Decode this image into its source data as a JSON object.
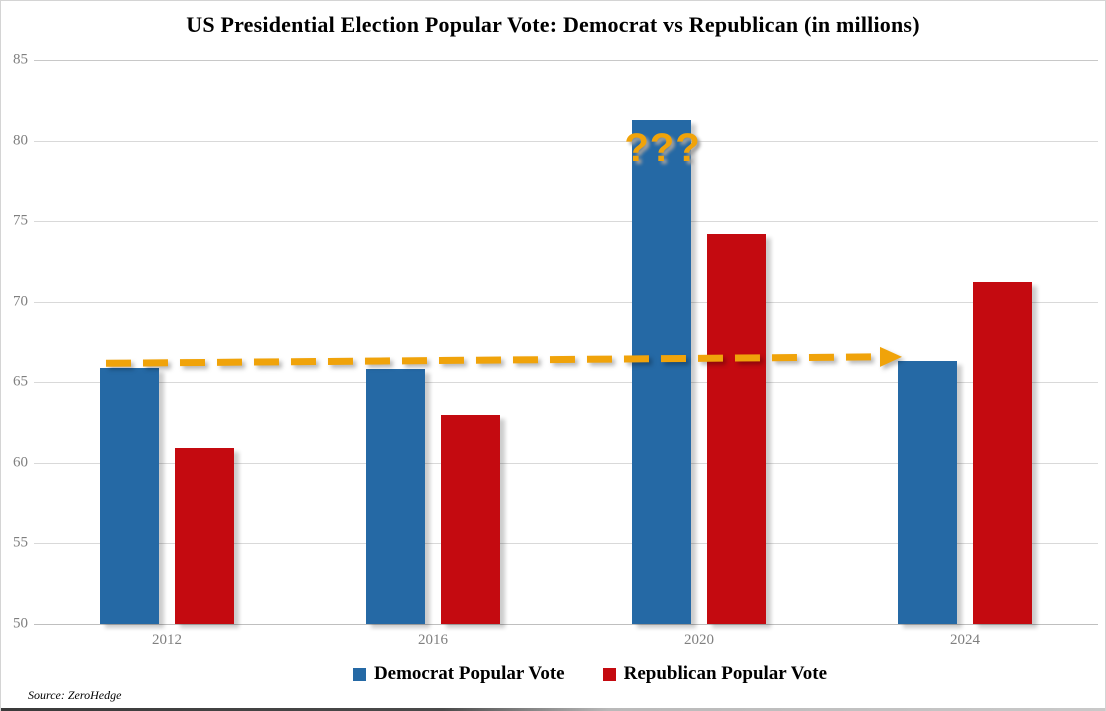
{
  "title": "US Presidential Election Popular Vote: Democrat vs Republican (in millions)",
  "source_note": "Source: ZeroHedge",
  "annotation": {
    "text": "???"
  },
  "colors": {
    "democrat": "#2569A5",
    "republican": "#C40A10",
    "annotation_orange": "#F0A30A",
    "gridline": "#D9D9D9",
    "axis_label_gray": "#7F7F7F"
  },
  "chart_data": {
    "type": "bar",
    "title": "US Presidential Election Popular Vote: Democrat vs Republican (in millions)",
    "categories": [
      "2012",
      "2016",
      "2020",
      "2024"
    ],
    "series": [
      {
        "name": "Democrat Popular Vote",
        "color": "#2569A5",
        "values": [
          65.9,
          65.8,
          81.3,
          66.3
        ]
      },
      {
        "name": "Republican Popular Vote",
        "color": "#C40A10",
        "values": [
          60.9,
          63.0,
          74.2,
          71.2
        ]
      }
    ],
    "ylim": [
      50,
      85
    ],
    "yticks": [
      50,
      55,
      60,
      65,
      70,
      75,
      80,
      85
    ],
    "grid": true,
    "legend_position": "bottom",
    "annotations": {
      "question_marks": {
        "text": "???",
        "above_category": "2020",
        "above_series": "Democrat Popular Vote"
      },
      "dashed_arrow": {
        "y_start": 65.9,
        "y_end": 66.3,
        "from_category": "2012",
        "to_category": "2024",
        "color": "#F0A30A"
      }
    }
  }
}
